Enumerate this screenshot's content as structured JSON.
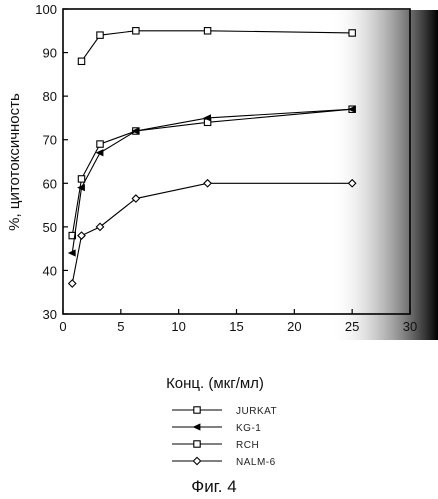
{
  "chart_data": {
    "type": "line",
    "xlabel": "Конц. (мкг/мл)",
    "ylabel": "%, цитотоксичность",
    "xlim": [
      0,
      30
    ],
    "ylim": [
      30,
      100
    ],
    "xticks": [
      0,
      5,
      10,
      15,
      20,
      25,
      30
    ],
    "yticks": [
      30,
      40,
      50,
      60,
      70,
      80,
      90,
      100
    ],
    "x_tick_labels": [
      "0",
      "5",
      "10",
      "15",
      "20",
      "25",
      "30"
    ],
    "y_tick_labels": [
      "30",
      "40",
      "50",
      "60",
      "70",
      "80",
      "90",
      "100"
    ],
    "grid": false,
    "legend_position": "bottom-center",
    "series": [
      {
        "name": "JURKAT",
        "marker": "square",
        "x": [
          0.8,
          1.6,
          3.2,
          6.3,
          12.5,
          25
        ],
        "y": [
          48,
          61,
          69,
          72,
          74,
          77
        ]
      },
      {
        "name": "KG-1",
        "marker": "triangle",
        "x": [
          0.8,
          1.6,
          3.2,
          6.3,
          12.5,
          25
        ],
        "y": [
          44,
          59,
          67,
          72,
          75,
          77
        ]
      },
      {
        "name": "RCH",
        "marker": "square",
        "x": [
          1.6,
          3.2,
          6.3,
          12.5,
          25
        ],
        "y": [
          88,
          94,
          95,
          95,
          94.5
        ]
      },
      {
        "name": "NALM-6",
        "marker": "diamond",
        "x": [
          0.8,
          1.6,
          3.2,
          6.3,
          12.5,
          25
        ],
        "y": [
          37,
          48,
          50,
          56.5,
          60,
          60
        ]
      }
    ]
  },
  "figure_caption": "Фиг. 4"
}
